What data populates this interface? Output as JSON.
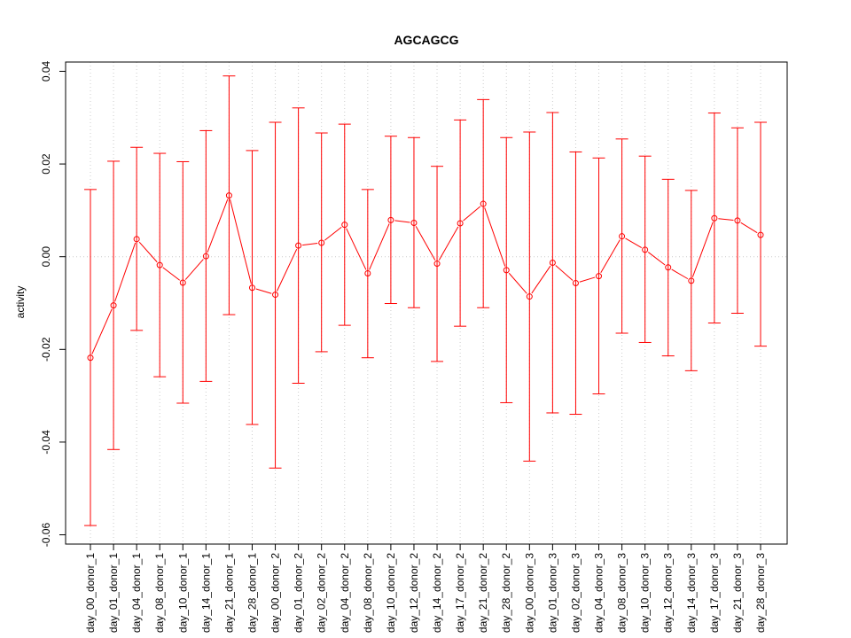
{
  "chart_data": {
    "type": "line",
    "title": "AGCAGCG",
    "xlabel": "",
    "ylabel": "activity",
    "ylim": [
      -0.062,
      0.042
    ],
    "yticks": [
      -0.06,
      -0.04,
      -0.02,
      0.0,
      0.02,
      0.04
    ],
    "ytick_labels": [
      "-0.06",
      "-0.04",
      "-0.02",
      "0.00",
      "0.02",
      "0.04"
    ],
    "grid": true,
    "line_color": "#ff0000",
    "grid_color": "#cccccc",
    "categories": [
      "day_00_donor_1",
      "day_01_donor_1",
      "day_04_donor_1",
      "day_08_donor_1",
      "day_10_donor_1",
      "day_14_donor_1",
      "day_21_donor_1",
      "day_28_donor_1",
      "day_00_donor_2",
      "day_01_donor_2",
      "day_02_donor_2",
      "day_04_donor_2",
      "day_08_donor_2",
      "day_10_donor_2",
      "day_12_donor_2",
      "day_14_donor_2",
      "day_17_donor_2",
      "day_21_donor_2",
      "day_28_donor_2",
      "day_00_donor_3",
      "day_01_donor_3",
      "day_02_donor_3",
      "day_04_donor_3",
      "day_08_donor_3",
      "day_10_donor_3",
      "day_12_donor_3",
      "day_14_donor_3",
      "day_17_donor_3",
      "day_21_donor_3",
      "day_28_donor_3"
    ],
    "values": [
      -0.0218,
      -0.0105,
      0.0038,
      -0.0018,
      -0.0056,
      0.0001,
      0.0132,
      -0.0067,
      -0.0082,
      0.0024,
      0.003,
      0.0069,
      -0.0036,
      0.0079,
      0.0073,
      -0.0015,
      0.0072,
      0.0114,
      -0.0029,
      -0.0086,
      -0.0013,
      -0.0057,
      -0.0042,
      0.0044,
      0.0015,
      -0.0023,
      -0.0052,
      0.0083,
      0.0078,
      0.0047
    ],
    "upper": [
      0.0145,
      0.0206,
      0.0236,
      0.0223,
      0.0205,
      0.0272,
      0.039,
      0.0229,
      0.029,
      0.0321,
      0.0267,
      0.0286,
      0.0145,
      0.026,
      0.0257,
      0.0195,
      0.0295,
      0.0339,
      0.0257,
      0.0269,
      0.0311,
      0.0226,
      0.0213,
      0.0254,
      0.0217,
      0.0167,
      0.0143,
      0.031,
      0.0278,
      0.029
    ],
    "lower": [
      -0.058,
      -0.0416,
      -0.0159,
      -0.0259,
      -0.0316,
      -0.0269,
      -0.0125,
      -0.0362,
      -0.0456,
      -0.0273,
      -0.0205,
      -0.0148,
      -0.0218,
      -0.0101,
      -0.011,
      -0.0226,
      -0.015,
      -0.011,
      -0.0315,
      -0.0441,
      -0.0337,
      -0.034,
      -0.0296,
      -0.0165,
      -0.0185,
      -0.0214,
      -0.0246,
      -0.0143,
      -0.0122,
      -0.0193
    ]
  }
}
